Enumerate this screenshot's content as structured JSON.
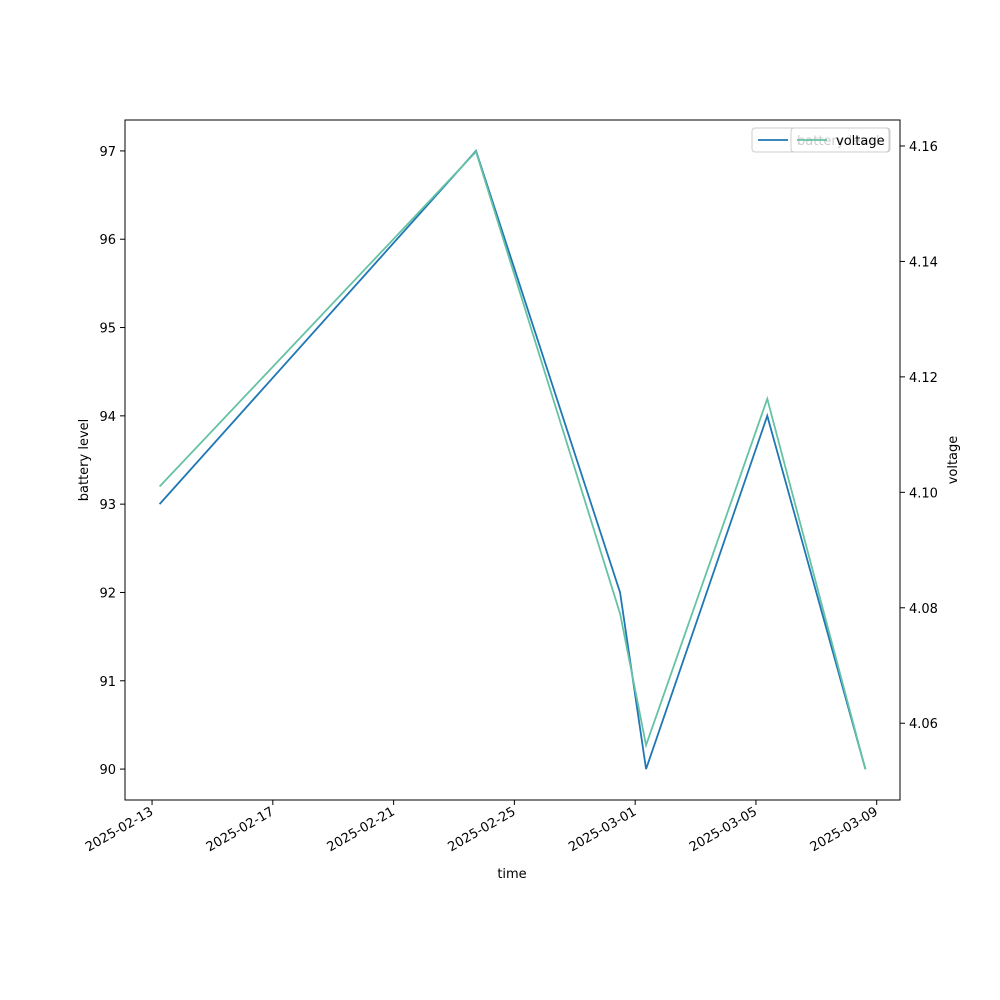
{
  "chart_data": {
    "type": "line",
    "x": [
      "2025-02-13T06:00",
      "2025-02-23T17:30",
      "2025-02-28T12:00",
      "2025-03-01T08:40",
      "2025-03-05T09:00",
      "2025-03-08T15:00"
    ],
    "series": [
      {
        "name": "battery level",
        "color": "#1f77b4",
        "values": [
          93,
          97,
          92,
          90,
          94,
          90
        ]
      },
      {
        "name": "voltage",
        "color": "#66c2a5",
        "axis": "y2",
        "values": [
          4.101,
          4.159,
          4.079,
          4.0562,
          4.1162,
          4.052
        ]
      }
    ],
    "xlabel": "time",
    "ylabel": "battery level",
    "y2label": "voltage",
    "xlim": [
      "2025-02-12T02:30",
      "2025-03-09T18:30"
    ],
    "xticks": [
      "2025-02-13",
      "2025-02-17",
      "2025-02-21",
      "2025-02-25",
      "2025-03-01",
      "2025-03-05",
      "2025-03-09"
    ],
    "ylim": [
      89.65,
      97.35
    ],
    "yticks": [
      90,
      91,
      92,
      93,
      94,
      95,
      96,
      97
    ],
    "y2lim": [
      4.0467,
      4.1645
    ],
    "y2ticks": [
      {
        "value": 4.06,
        "label": "4.06"
      },
      {
        "value": 4.08,
        "label": "4.08"
      },
      {
        "value": 4.1,
        "label": "4.10"
      },
      {
        "value": 4.12,
        "label": "4.12"
      },
      {
        "value": 4.14,
        "label": "4.14"
      },
      {
        "value": 4.16,
        "label": "4.16"
      }
    ],
    "legend": "upper right"
  }
}
